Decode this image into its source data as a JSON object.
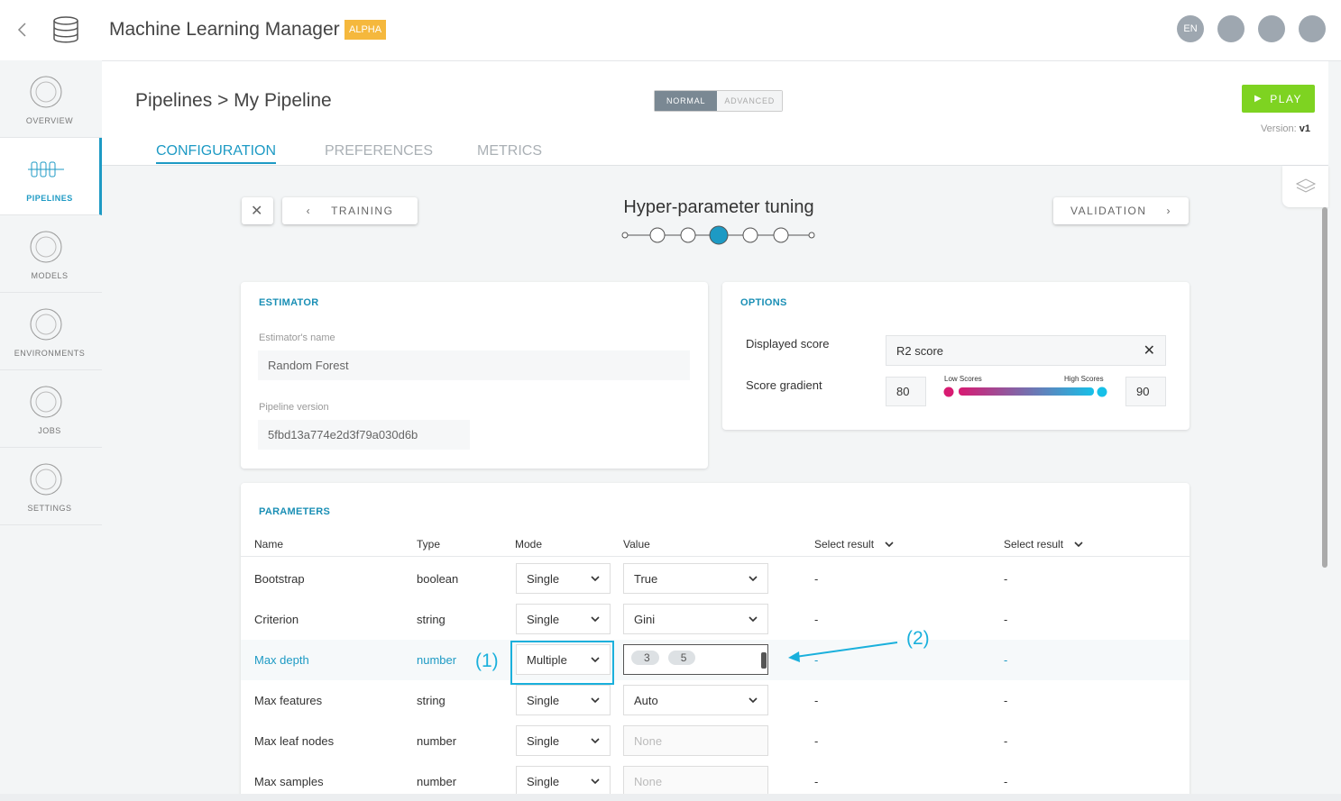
{
  "header": {
    "title": "Machine Learning Manager",
    "badge": "ALPHA",
    "language": "EN"
  },
  "sidebar": {
    "items": [
      "OVERVIEW",
      "PIPELINES",
      "MODELS",
      "ENVIRONMENTS",
      "JOBS",
      "SETTINGS"
    ]
  },
  "breadcrumb": {
    "root": "Pipelines",
    "current": "My Pipeline"
  },
  "mode_toggle": [
    "NORMAL",
    "ADVANCED"
  ],
  "play": "PLAY",
  "version": {
    "label": "Version:",
    "value": "v1"
  },
  "tabs": [
    "CONFIGURATION",
    "PREFERENCES",
    "METRICS"
  ],
  "step": {
    "prev": "TRAINING",
    "title": "Hyper-parameter tuning",
    "next": "VALIDATION"
  },
  "estimator": {
    "heading": "ESTIMATOR",
    "name_label": "Estimator's name",
    "name": "Random Forest",
    "version_label": "Pipeline version",
    "version": "5fbd13a774e2d3f79a030d6b"
  },
  "options": {
    "heading": "OPTIONS",
    "displayed_score_label": "Displayed score",
    "displayed_score": "R2 score",
    "gradient_label": "Score gradient",
    "low": "80",
    "high": "90",
    "low_label": "Low Scores",
    "high_label": "High Scores"
  },
  "parameters": {
    "heading": "PARAMETERS",
    "columns": [
      "Name",
      "Type",
      "Mode",
      "Value",
      "Select result",
      "Select result"
    ],
    "rows": [
      {
        "name": "Bootstrap",
        "type": "boolean",
        "mode": "Single",
        "value": "True",
        "result1": "-",
        "result2": "-"
      },
      {
        "name": "Criterion",
        "type": "string",
        "mode": "Single",
        "value": "Gini",
        "result1": "-",
        "result2": "-"
      },
      {
        "name": "Max depth",
        "type": "number",
        "mode": "Multiple",
        "value": [
          "3",
          "5"
        ],
        "result1": "-",
        "result2": "-"
      },
      {
        "name": "Max features",
        "type": "string",
        "mode": "Single",
        "value": "Auto",
        "result1": "-",
        "result2": "-"
      },
      {
        "name": "Max leaf nodes",
        "type": "number",
        "mode": "Single",
        "placeholder": "None",
        "result1": "-",
        "result2": "-"
      },
      {
        "name": "Max samples",
        "type": "number",
        "mode": "Single",
        "placeholder": "None",
        "result1": "-",
        "result2": "-"
      }
    ]
  },
  "annotations": [
    "(1)",
    "(2)"
  ]
}
